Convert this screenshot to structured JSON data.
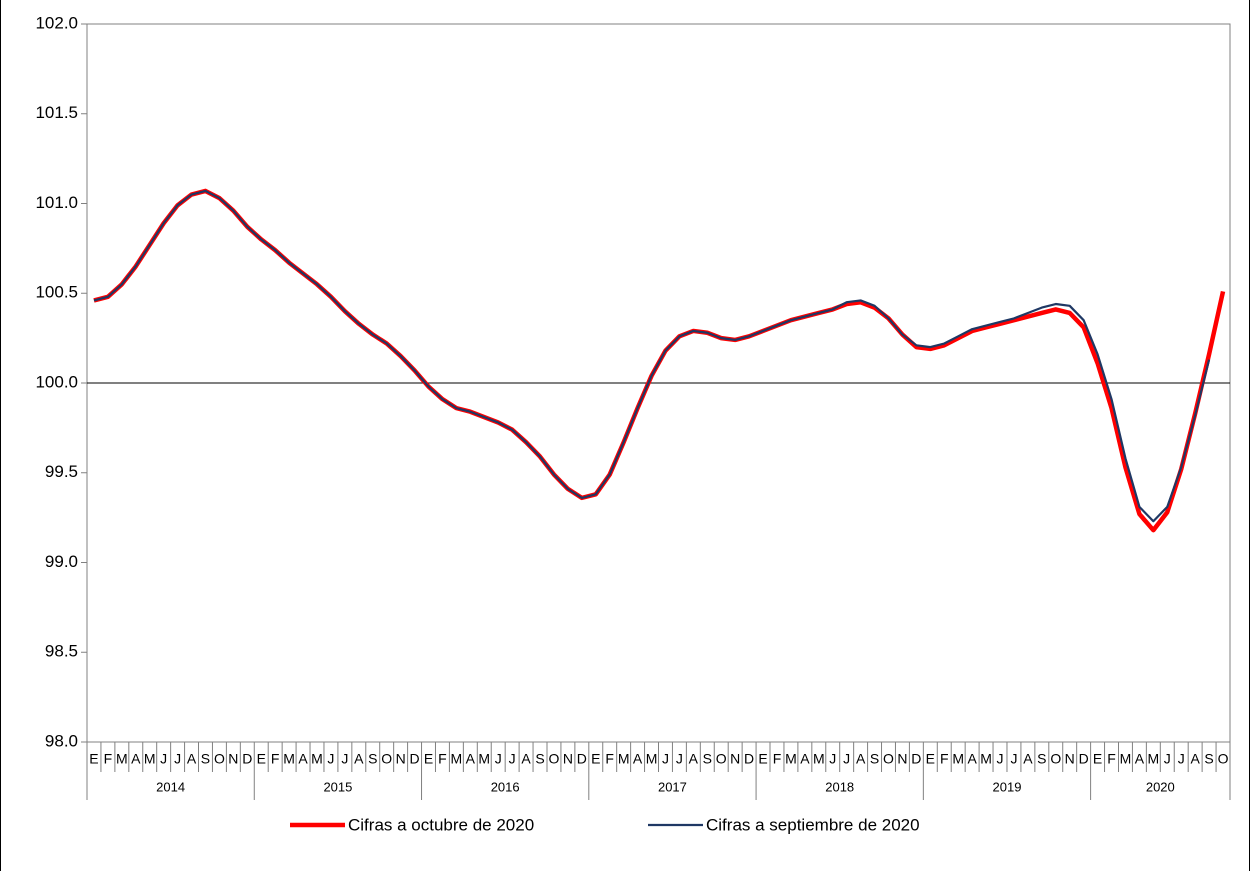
{
  "chart_data": {
    "type": "line",
    "categories": [
      "E",
      "F",
      "M",
      "A",
      "M",
      "J",
      "J",
      "A",
      "S",
      "O",
      "N",
      "D",
      "E",
      "F",
      "M",
      "A",
      "M",
      "J",
      "J",
      "A",
      "S",
      "O",
      "N",
      "D",
      "E",
      "F",
      "M",
      "A",
      "M",
      "J",
      "J",
      "A",
      "S",
      "O",
      "N",
      "D",
      "E",
      "F",
      "M",
      "A",
      "M",
      "J",
      "J",
      "A",
      "S",
      "O",
      "N",
      "D",
      "E",
      "F",
      "M",
      "A",
      "M",
      "J",
      "J",
      "A",
      "S",
      "O",
      "N",
      "D",
      "E",
      "F",
      "M",
      "A",
      "M",
      "J",
      "J",
      "A",
      "S",
      "O",
      "N",
      "D",
      "E",
      "F",
      "M",
      "A",
      "M",
      "J",
      "J",
      "A",
      "S",
      "O"
    ],
    "years": [
      "2014",
      "2015",
      "2016",
      "2017",
      "2018",
      "2019",
      "2020"
    ],
    "series": [
      {
        "name": "Cifras a octubre de 2020",
        "color": "#ff0000",
        "values": [
          100.46,
          100.48,
          100.55,
          100.65,
          100.77,
          100.89,
          100.99,
          101.05,
          101.07,
          101.03,
          100.96,
          100.87,
          100.8,
          100.74,
          100.67,
          100.61,
          100.55,
          100.48,
          100.4,
          100.33,
          100.27,
          100.22,
          100.15,
          100.07,
          99.98,
          99.91,
          99.86,
          99.84,
          99.81,
          99.78,
          99.74,
          99.67,
          99.59,
          99.49,
          99.41,
          99.36,
          99.38,
          99.49,
          99.67,
          99.86,
          100.04,
          100.18,
          100.26,
          100.29,
          100.28,
          100.25,
          100.24,
          100.26,
          100.29,
          100.32,
          100.35,
          100.37,
          100.39,
          100.41,
          100.44,
          100.45,
          100.42,
          100.36,
          100.27,
          100.2,
          100.19,
          100.21,
          100.25,
          100.29,
          100.31,
          100.33,
          100.35,
          100.37,
          100.39,
          100.41,
          100.39,
          100.31,
          100.11,
          99.86,
          99.53,
          99.27,
          99.18,
          99.28,
          99.52,
          99.83,
          100.16,
          100.51
        ]
      },
      {
        "name": "Cifras a septiembre de 2020",
        "color": "#1f3864",
        "values": [
          100.46,
          100.48,
          100.55,
          100.65,
          100.77,
          100.89,
          100.99,
          101.05,
          101.07,
          101.03,
          100.96,
          100.87,
          100.8,
          100.74,
          100.67,
          100.61,
          100.55,
          100.48,
          100.4,
          100.33,
          100.27,
          100.22,
          100.15,
          100.07,
          99.98,
          99.91,
          99.86,
          99.84,
          99.81,
          99.78,
          99.74,
          99.67,
          99.59,
          99.49,
          99.41,
          99.36,
          99.38,
          99.49,
          99.67,
          99.86,
          100.04,
          100.18,
          100.26,
          100.29,
          100.28,
          100.25,
          100.24,
          100.26,
          100.29,
          100.32,
          100.35,
          100.37,
          100.39,
          100.41,
          100.45,
          100.46,
          100.43,
          100.36,
          100.27,
          100.21,
          100.2,
          100.22,
          100.26,
          100.3,
          100.32,
          100.34,
          100.36,
          100.39,
          100.42,
          100.44,
          100.43,
          100.35,
          100.16,
          99.91,
          99.58,
          99.31,
          99.23,
          99.31,
          99.53,
          99.82,
          100.13,
          null
        ]
      }
    ],
    "ylim": [
      98,
      102
    ],
    "yticks": [
      {
        "value": 98,
        "label": "98.0"
      },
      98.5,
      {
        "value": 99,
        "label": "99.0"
      },
      99.5,
      {
        "value": 100,
        "label": "100.0"
      },
      100.5,
      {
        "value": 101,
        "label": "101.0"
      },
      101.5,
      {
        "value": 102,
        "label": "102.0"
      }
    ],
    "reference_line": 100,
    "legend": "bottom"
  }
}
